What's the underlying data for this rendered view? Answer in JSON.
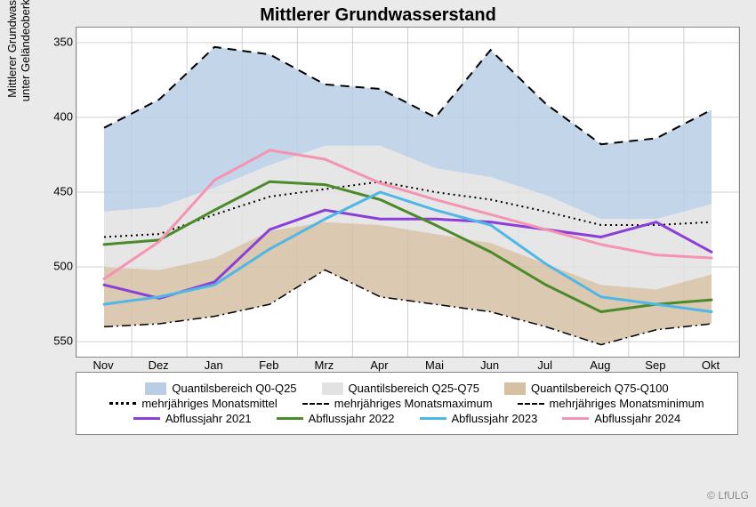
{
  "title": "Mittlerer Grundwasserstand",
  "ylabel": "Mittlerer Grundwasserstand\nunter Geländeoberkante [cm]",
  "copyright": "© LfULG",
  "chart": {
    "type": "line-band",
    "categories": [
      "Nov",
      "Dez",
      "Jan",
      "Feb",
      "Mrz",
      "Apr",
      "Mai",
      "Jun",
      "Jul",
      "Aug",
      "Sep",
      "Okt"
    ],
    "ylim": [
      560,
      340
    ],
    "yticks": [
      350,
      400,
      450,
      500,
      550
    ],
    "grid_color": "#d0d0d0",
    "background_color": "#ffffff",
    "bands": [
      {
        "name": "Quantilsbereich Q0-Q25",
        "fill": "#b9cee5",
        "opacity": 0.85,
        "upper": [
          407,
          388,
          353,
          358,
          378,
          381,
          400,
          355,
          391,
          418,
          414,
          395
        ],
        "lower": [
          463,
          460,
          447,
          432,
          419,
          419,
          434,
          440,
          452,
          468,
          468,
          458
        ]
      },
      {
        "name": "Quantilsbereich Q25-Q75",
        "fill": "#e2e2e2",
        "opacity": 0.85,
        "upper": [
          463,
          460,
          447,
          432,
          419,
          419,
          434,
          440,
          452,
          468,
          468,
          458
        ],
        "lower": [
          500,
          502,
          494,
          476,
          470,
          472,
          478,
          484,
          498,
          512,
          515,
          505
        ]
      },
      {
        "name": "Quantilsbereich Q75-Q100",
        "fill": "#d5c0a4",
        "opacity": 0.85,
        "upper": [
          500,
          502,
          494,
          476,
          470,
          472,
          478,
          484,
          498,
          512,
          515,
          505
        ],
        "lower": [
          540,
          538,
          533,
          525,
          502,
          520,
          525,
          530,
          540,
          552,
          542,
          538
        ]
      }
    ],
    "ref_lines": [
      {
        "name": "mehrjähriges Monatsmittel",
        "style": "dotted",
        "color": "#000",
        "width": 2,
        "values": [
          480,
          478,
          465,
          453,
          448,
          443,
          450,
          455,
          463,
          472,
          472,
          470
        ]
      },
      {
        "name": "mehrjähriges Monatsmaximum",
        "style": "dashed",
        "color": "#000",
        "width": 2,
        "values": [
          407,
          388,
          353,
          358,
          378,
          381,
          400,
          355,
          391,
          418,
          414,
          395
        ]
      },
      {
        "name": "mehrjähriges Monatsminimum",
        "style": "dashdot",
        "color": "#000",
        "width": 1.5,
        "values": [
          540,
          538,
          533,
          525,
          502,
          520,
          525,
          530,
          540,
          552,
          542,
          538
        ]
      }
    ],
    "series": [
      {
        "name": "Abflussjahr 2021",
        "color": "#8a3fd6",
        "width": 3,
        "values": [
          512,
          521,
          510,
          475,
          462,
          468,
          468,
          470,
          475,
          480,
          470,
          490
        ]
      },
      {
        "name": "Abflussjahr 2022",
        "color": "#4a8a2a",
        "width": 3,
        "values": [
          485,
          482,
          462,
          443,
          445,
          455,
          472,
          490,
          512,
          530,
          525,
          522
        ]
      },
      {
        "name": "Abflussjahr 2023",
        "color": "#4fb7e6",
        "width": 3,
        "values": [
          525,
          520,
          512,
          488,
          468,
          450,
          462,
          472,
          498,
          520,
          525,
          530
        ]
      },
      {
        "name": "Abflussjahr 2024",
        "color": "#f494b0",
        "width": 3,
        "values": [
          508,
          483,
          442,
          422,
          428,
          444,
          455,
          465,
          475,
          485,
          492,
          494
        ]
      }
    ]
  },
  "legend": {
    "r1": [
      {
        "sw": "#b9cee5",
        "label": "Quantilsbereich Q0-Q25"
      },
      {
        "sw": "#e2e2e2",
        "label": "Quantilsbereich Q25-Q75"
      },
      {
        "sw": "#d5c0a4",
        "label": "Quantilsbereich Q75-Q100"
      }
    ],
    "r2": [
      {
        "ln": "dotted",
        "label": "mehrjähriges Monatsmittel"
      },
      {
        "ln": "dashed",
        "label": "mehrjähriges Monatsmaximum"
      },
      {
        "ln": "dashdot",
        "label": "mehrjähriges Monatsminimum"
      }
    ],
    "r3": [
      {
        "lc": "#8a3fd6",
        "label": "Abflussjahr 2021"
      },
      {
        "lc": "#4a8a2a",
        "label": "Abflussjahr 2022"
      },
      {
        "lc": "#4fb7e6",
        "label": "Abflussjahr 2023"
      },
      {
        "lc": "#f494b0",
        "label": "Abflussjahr 2024"
      }
    ]
  }
}
